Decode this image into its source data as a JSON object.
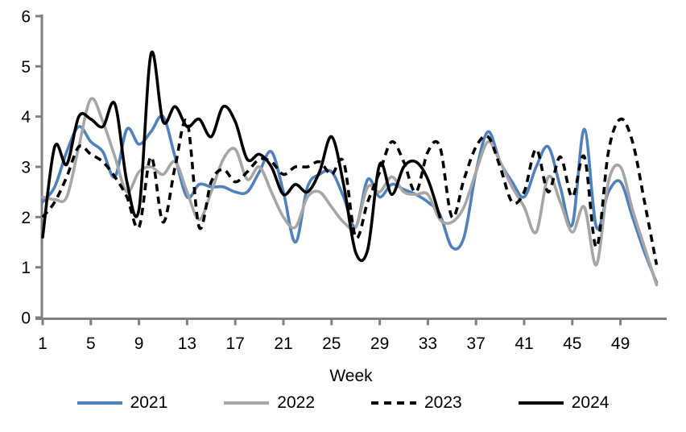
{
  "chart_data": {
    "type": "line",
    "title": "",
    "xlabel": "Week",
    "x_ticks": [
      1,
      5,
      9,
      13,
      17,
      21,
      25,
      29,
      33,
      37,
      41,
      45,
      49
    ],
    "y_ticks": [
      0,
      1,
      2,
      3,
      4,
      5,
      6
    ],
    "xlim": [
      1,
      52
    ],
    "ylim": [
      0,
      6
    ],
    "grid": false,
    "legend_position": "bottom",
    "axis_color": "#808080",
    "x_weeks": "1 to 52, weekly values",
    "series": [
      {
        "name": "2021",
        "color": "#4F81BD",
        "dash": "solid",
        "start_week": 1,
        "values": [
          2.3,
          2.6,
          3.3,
          3.8,
          3.5,
          3.3,
          2.8,
          3.75,
          3.45,
          3.7,
          4.0,
          3.2,
          2.4,
          2.65,
          2.6,
          2.6,
          2.5,
          2.5,
          2.9,
          3.3,
          2.5,
          1.5,
          2.6,
          2.85,
          2.9,
          2.4,
          1.8,
          2.75,
          2.4,
          2.65,
          2.55,
          2.45,
          2.3,
          2.05,
          1.4,
          1.6,
          2.9,
          3.7,
          3.1,
          2.7,
          2.4,
          3.0,
          3.4,
          2.6,
          1.85,
          3.75,
          1.8,
          2.5,
          2.7,
          2.0,
          1.3,
          0.7
        ]
      },
      {
        "name": "2022",
        "color": "#A6A6A6",
        "dash": "solid",
        "start_week": 1,
        "values": [
          2.4,
          2.35,
          2.4,
          3.4,
          4.35,
          3.9,
          3.2,
          2.5,
          2.9,
          3.0,
          2.85,
          3.1,
          2.5,
          1.95,
          2.5,
          3.15,
          3.35,
          2.75,
          3.0,
          2.5,
          2.0,
          1.8,
          2.4,
          2.5,
          2.2,
          1.9,
          1.8,
          2.6,
          2.5,
          2.8,
          2.5,
          2.45,
          2.45,
          1.95,
          1.9,
          2.2,
          2.9,
          3.5,
          3.1,
          2.6,
          2.2,
          1.7,
          2.8,
          2.3,
          1.7,
          2.2,
          1.05,
          2.7,
          3.0,
          2.15,
          1.4,
          0.65
        ]
      },
      {
        "name": "2023",
        "color": "#000000",
        "dash": "dashed",
        "start_week": 1,
        "values": [
          2.0,
          2.3,
          2.8,
          3.4,
          3.25,
          3.1,
          2.8,
          2.4,
          1.8,
          3.2,
          1.9,
          3.0,
          3.9,
          1.8,
          2.7,
          2.95,
          2.7,
          2.9,
          3.15,
          3.1,
          2.85,
          3.0,
          3.0,
          3.1,
          2.85,
          3.1,
          1.6,
          2.3,
          2.9,
          3.5,
          3.1,
          2.5,
          3.3,
          3.4,
          2.0,
          2.75,
          3.4,
          3.6,
          3.0,
          2.3,
          2.5,
          3.35,
          2.5,
          3.2,
          2.4,
          3.2,
          1.4,
          3.3,
          3.95,
          3.5,
          2.3,
          1.05
        ]
      },
      {
        "name": "2024",
        "color": "#000000",
        "dash": "solid",
        "start_week": 1,
        "values": [
          1.6,
          3.4,
          3.05,
          4.0,
          3.95,
          3.8,
          4.25,
          2.7,
          2.15,
          5.25,
          3.9,
          4.2,
          3.8,
          3.95,
          3.6,
          4.2,
          3.9,
          3.15,
          3.25,
          3.0,
          2.45,
          2.65,
          2.5,
          2.9,
          3.6,
          2.65,
          1.3,
          1.35,
          3.05,
          2.45,
          3.0,
          3.1,
          2.75,
          2.0
        ]
      }
    ]
  }
}
